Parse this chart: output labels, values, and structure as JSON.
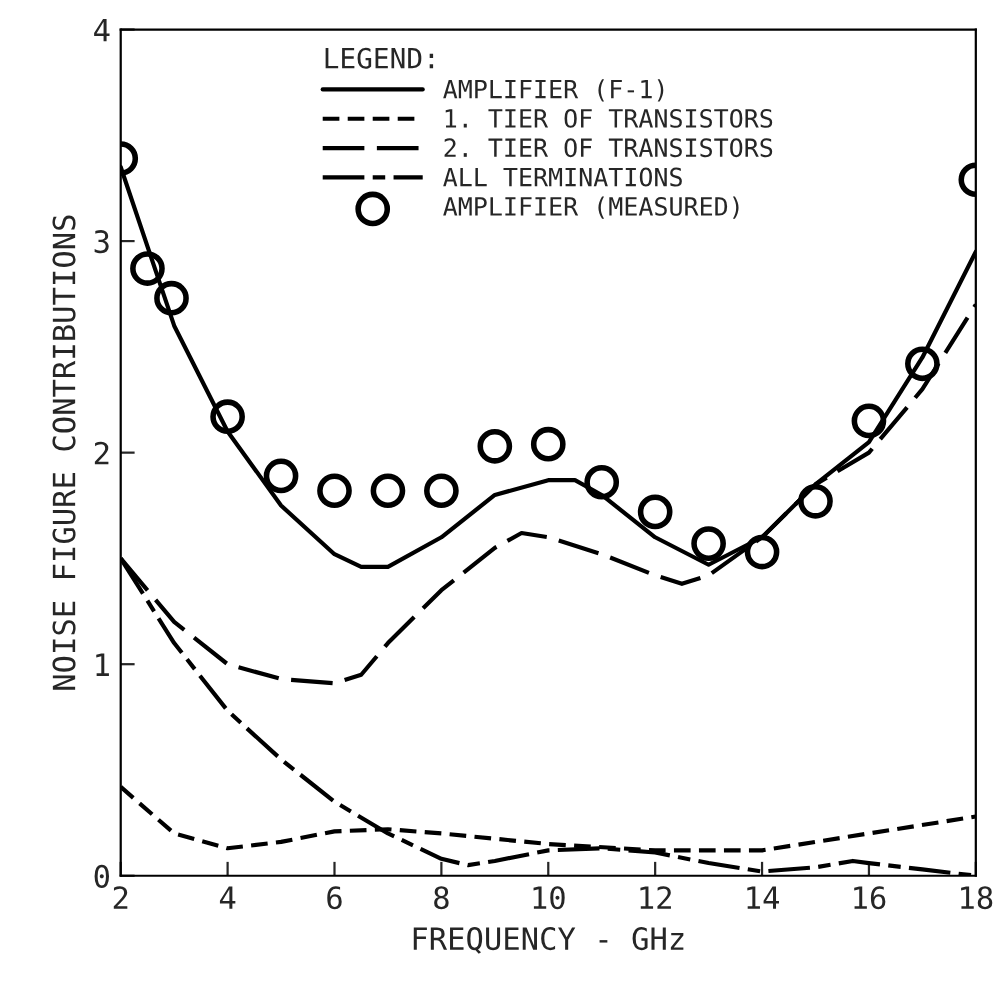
{
  "chart_data": {
    "type": "line",
    "xlabel": "FREQUENCY - GHz",
    "ylabel": "NOISE FIGURE CONTRIBUTIONS",
    "legend_title": "LEGEND:",
    "xlim": [
      2,
      18
    ],
    "xticks": [
      2,
      4,
      6,
      8,
      10,
      12,
      14,
      16,
      18
    ],
    "ylim": [
      0,
      4
    ],
    "yticks": [
      0,
      1,
      2,
      3,
      4
    ],
    "grid": false,
    "legend": "top",
    "series": [
      {
        "name": "AMPLIFIER (F-1)",
        "color": "#000000",
        "line_style": "solid",
        "x": [
          2,
          3,
          4,
          5,
          6,
          6.5,
          7,
          8,
          9,
          10,
          10.5,
          11,
          12,
          13,
          14,
          15,
          16,
          17,
          18
        ],
        "values": [
          3.35,
          2.6,
          2.1,
          1.75,
          1.52,
          1.46,
          1.46,
          1.6,
          1.8,
          1.87,
          1.87,
          1.8,
          1.6,
          1.47,
          1.6,
          1.85,
          2.05,
          2.45,
          2.95
        ]
      },
      {
        "name": "1. TIER OF TRANSISTORS",
        "color": "#000000",
        "line_style": "dashed",
        "x": [
          2,
          3,
          4,
          5,
          6,
          7,
          8,
          10,
          12,
          14,
          16,
          18
        ],
        "values": [
          0.42,
          0.2,
          0.13,
          0.16,
          0.21,
          0.22,
          0.2,
          0.15,
          0.12,
          0.12,
          0.2,
          0.28
        ]
      },
      {
        "name": "2. TIER OF TRANSISTORS",
        "color": "#000000",
        "line_style": "longdash",
        "x": [
          2,
          3,
          4,
          5,
          6,
          6.5,
          7,
          8,
          9,
          9.5,
          10,
          11,
          12,
          12.5,
          13,
          14,
          15,
          16,
          17,
          18
        ],
        "values": [
          1.5,
          1.2,
          1.0,
          0.93,
          0.91,
          0.95,
          1.1,
          1.35,
          1.55,
          1.62,
          1.6,
          1.52,
          1.42,
          1.38,
          1.42,
          1.6,
          1.85,
          2.0,
          2.3,
          2.7
        ]
      },
      {
        "name": "ALL TERMINATIONS",
        "color": "#000000",
        "line_style": "dashdot",
        "x": [
          2,
          3,
          4,
          5,
          6,
          7,
          8,
          8.5,
          9,
          10,
          11,
          12,
          13,
          14,
          15,
          15.7,
          16,
          17,
          18
        ],
        "values": [
          1.5,
          1.1,
          0.78,
          0.55,
          0.35,
          0.2,
          0.08,
          0.05,
          0.07,
          0.12,
          0.13,
          0.11,
          0.06,
          0.02,
          0.04,
          0.07,
          0.06,
          0.03,
          0.0
        ]
      },
      {
        "name": "AMPLIFIER (MEASURED)",
        "type": "scatter",
        "marker": "circle",
        "color": "#000000",
        "x": [
          2,
          2.5,
          2.95,
          4,
          5,
          6,
          7,
          8,
          9,
          10,
          11,
          12,
          13,
          14,
          15,
          16,
          17,
          18
        ],
        "values": [
          3.39,
          2.87,
          2.73,
          2.17,
          1.89,
          1.82,
          1.82,
          1.82,
          2.03,
          2.04,
          1.86,
          1.72,
          1.57,
          1.53,
          1.77,
          2.15,
          2.42,
          3.29
        ]
      }
    ]
  }
}
